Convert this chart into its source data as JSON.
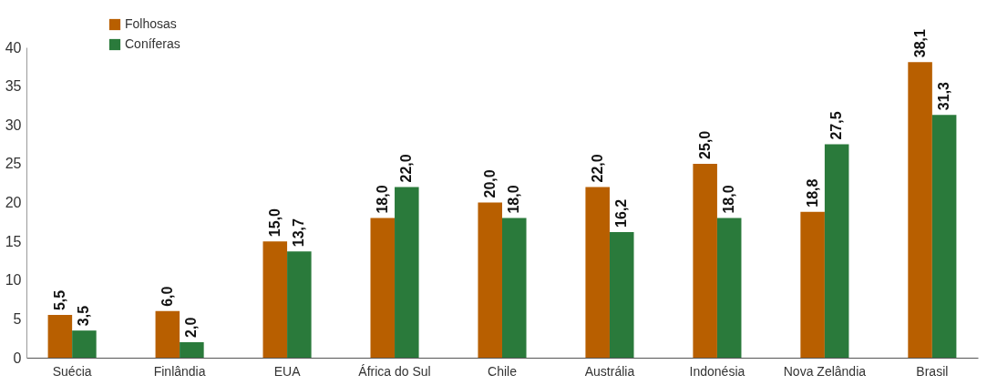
{
  "chart_data": {
    "type": "bar",
    "categories": [
      "Suécia",
      "Finlândia",
      "EUA",
      "África do Sul",
      "Chile",
      "Austrália",
      "Indonésia",
      "Nova Zelândia",
      "Brasil"
    ],
    "series": [
      {
        "name": "Folhosas",
        "color": "#b85f00",
        "values": [
          5.5,
          6.0,
          15.0,
          18.0,
          20.0,
          22.0,
          25.0,
          18.8,
          38.1
        ],
        "value_labels": [
          "5,5",
          "6,0",
          "15,0",
          "18,0",
          "20,0",
          "22,0",
          "25,0",
          "18,8",
          "38,1"
        ]
      },
      {
        "name": "Coníferas",
        "color": "#2a7a3b",
        "values": [
          3.5,
          2.0,
          13.7,
          22.0,
          18.0,
          16.2,
          18.0,
          27.5,
          31.3
        ],
        "value_labels": [
          "3,5",
          "2,0",
          "13,7",
          "22,0",
          "18,0",
          "16,2",
          "18,0",
          "27,5",
          "31,3"
        ]
      }
    ],
    "ylim": [
      0,
      40
    ],
    "yticks": [
      0,
      5,
      10,
      15,
      20,
      25,
      30,
      35,
      40
    ],
    "grid": false,
    "legend": "top left"
  }
}
